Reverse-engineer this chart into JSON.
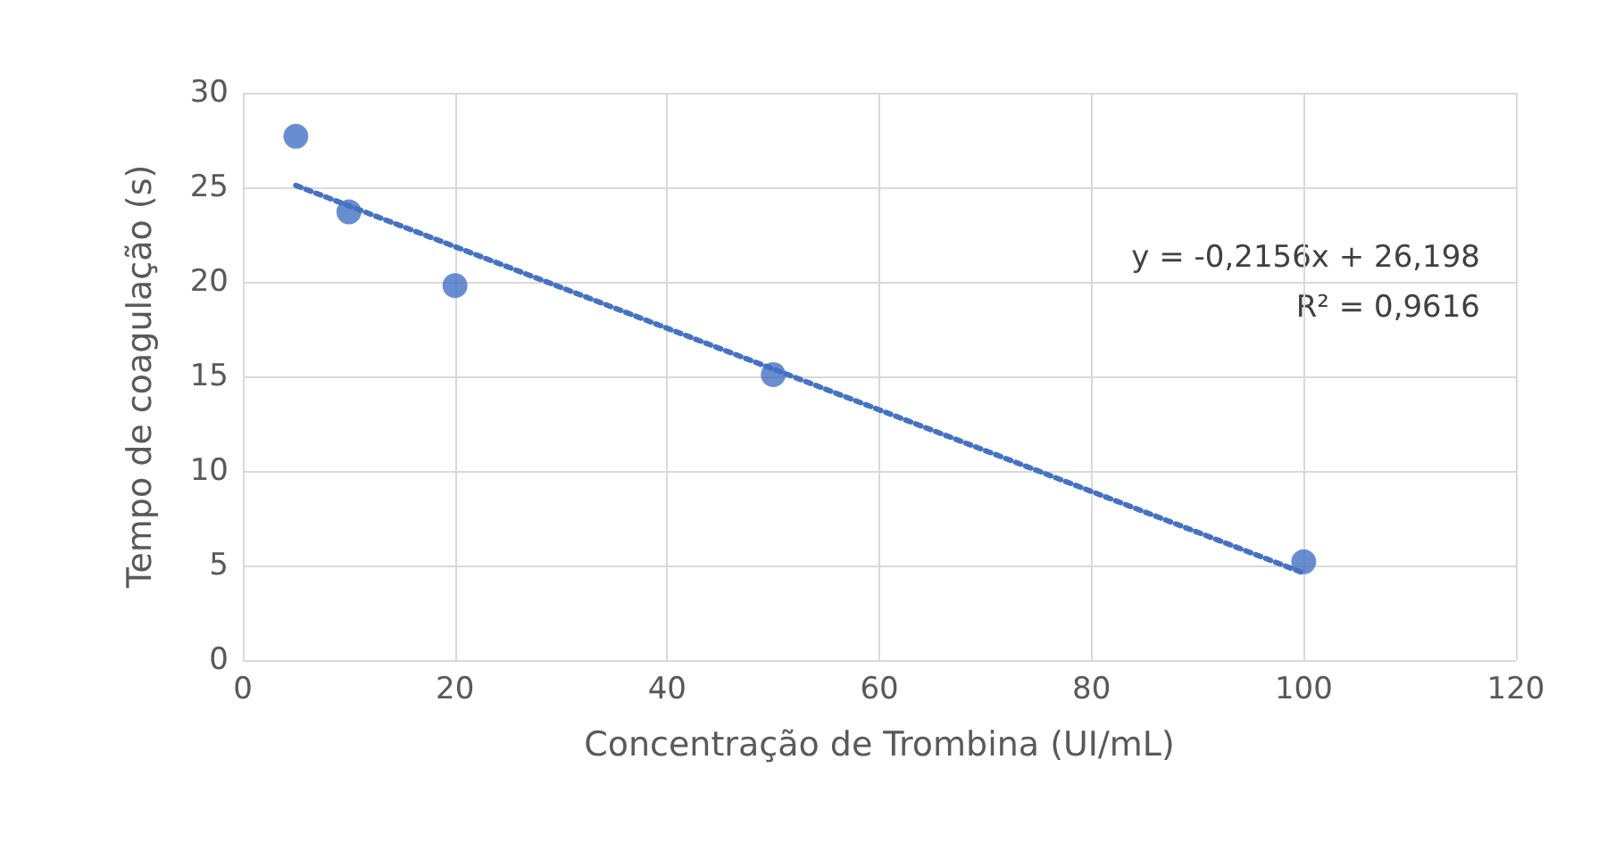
{
  "chart_data": {
    "type": "scatter",
    "xlabel": "Concentração de Trombina (UI/mL)",
    "ylabel": "Tempo de coagulação (s)",
    "xlim": [
      0,
      120
    ],
    "xticks": [
      0,
      20,
      40,
      60,
      80,
      100,
      120
    ],
    "ylim": [
      0,
      30
    ],
    "yticks": [
      0,
      5,
      10,
      15,
      20,
      25,
      30
    ],
    "grid": true,
    "marker": "circle",
    "series": [
      {
        "color": "#4472c4",
        "x": [
          5,
          10,
          20,
          50,
          100
        ],
        "values": [
          27.7,
          23.7,
          19.8,
          15.1,
          5.2
        ]
      },
      {
        "type": "line",
        "color": "#4472c4",
        "x": [
          5,
          100
        ],
        "values": [
          25.1,
          4.6
        ],
        "marker": "none",
        "line_style": "dotted"
      }
    ],
    "annotations": [
      "y = -0,2156x + 26,198",
      "R² = 0,9616"
    ]
  }
}
